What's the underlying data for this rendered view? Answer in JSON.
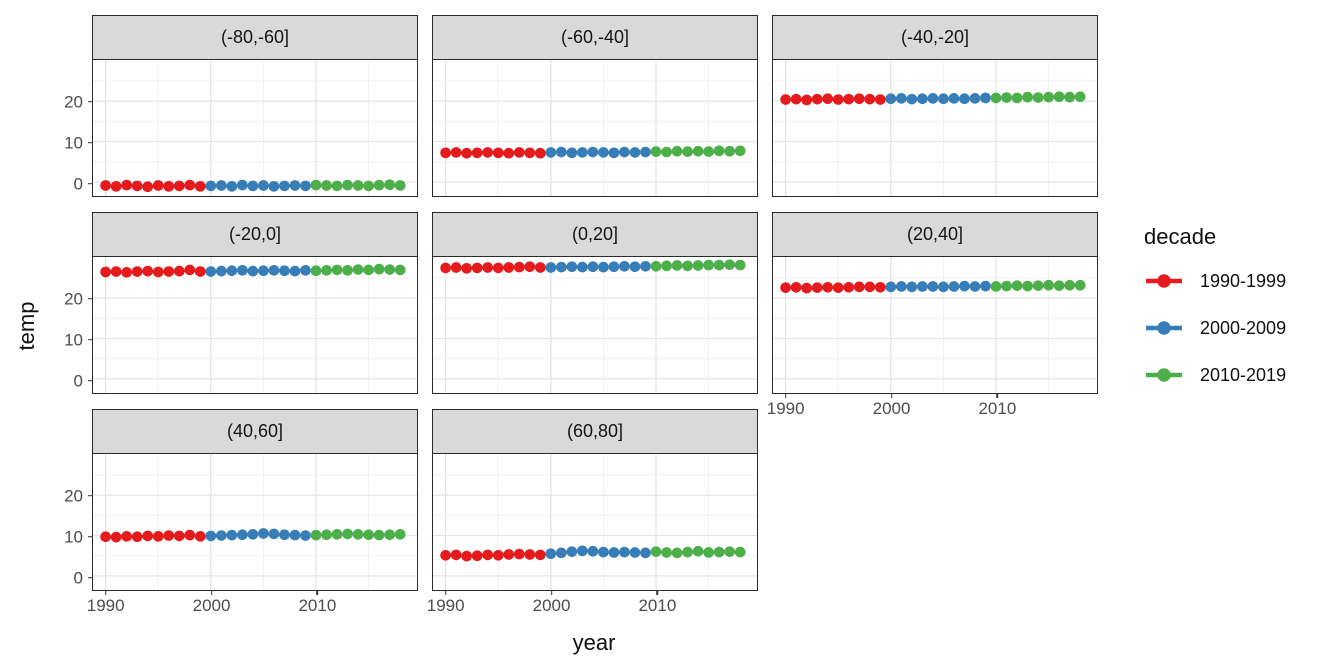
{
  "axes": {
    "x_title": "year",
    "y_title": "temp",
    "x_tick_labels": [
      "1990",
      "2000",
      "2010"
    ],
    "y_tick_labels": [
      "0",
      "10",
      "20"
    ]
  },
  "legend": {
    "title": "decade",
    "entries": [
      {
        "label": "1990-1999",
        "color": "#E41A1C"
      },
      {
        "label": "2000-2009",
        "color": "#377EB8"
      },
      {
        "label": "2010-2019",
        "color": "#4DAF4A"
      }
    ]
  },
  "colors": {
    "strip_fill": "#D9D9D9",
    "panel_border": "#2B2B2B",
    "grid_major": "#E4E4E4",
    "grid_minor": "#F1F1F1",
    "tick_text": "#4D4D4D"
  },
  "chart_data": {
    "type": "scatter",
    "title": "",
    "xlabel": "year",
    "ylabel": "temp",
    "legend_position": "right",
    "grid": true,
    "x_range": [
      1988.8,
      2019.6
    ],
    "y_range": [
      -3.5,
      30.2
    ],
    "x_major_ticks": [
      1990,
      2000,
      2010
    ],
    "x_minor_ticks": [
      1995,
      2005,
      2015
    ],
    "y_major_ticks": [
      0,
      10,
      20
    ],
    "y_minor_ticks": [
      5,
      15,
      25
    ],
    "years": [
      1990,
      1991,
      1992,
      1993,
      1994,
      1995,
      1996,
      1997,
      1998,
      1999,
      2000,
      2001,
      2002,
      2003,
      2004,
      2005,
      2006,
      2007,
      2008,
      2009,
      2010,
      2011,
      2012,
      2013,
      2014,
      2015,
      2016,
      2017,
      2018
    ],
    "decades": [
      {
        "name": "1990-1999",
        "color": "#E41A1C",
        "start": 1990,
        "end": 1999
      },
      {
        "name": "2000-2009",
        "color": "#377EB8",
        "start": 2000,
        "end": 2009
      },
      {
        "name": "2010-2019",
        "color": "#4DAF4A",
        "start": 2010,
        "end": 2019
      }
    ],
    "facets": [
      {
        "label": "(-80,-60]",
        "temps": [
          -0.9,
          -1.1,
          -0.8,
          -1.0,
          -1.2,
          -0.9,
          -1.1,
          -1.0,
          -0.8,
          -1.1,
          -1.0,
          -0.9,
          -1.1,
          -0.8,
          -1.0,
          -0.9,
          -1.1,
          -1.0,
          -0.9,
          -1.0,
          -0.8,
          -0.9,
          -1.0,
          -0.8,
          -0.9,
          -1.0,
          -0.8,
          -0.7,
          -0.9
        ]
      },
      {
        "label": "(-60,-40]",
        "temps": [
          7.2,
          7.3,
          7.1,
          7.2,
          7.3,
          7.2,
          7.1,
          7.3,
          7.2,
          7.1,
          7.3,
          7.4,
          7.2,
          7.3,
          7.4,
          7.3,
          7.2,
          7.4,
          7.3,
          7.4,
          7.5,
          7.4,
          7.6,
          7.5,
          7.6,
          7.5,
          7.7,
          7.6,
          7.7
        ]
      },
      {
        "label": "(-40,-20]",
        "temps": [
          20.4,
          20.5,
          20.3,
          20.5,
          20.6,
          20.4,
          20.5,
          20.6,
          20.5,
          20.4,
          20.6,
          20.7,
          20.5,
          20.6,
          20.7,
          20.6,
          20.7,
          20.6,
          20.7,
          20.8,
          20.8,
          20.9,
          20.8,
          21.0,
          20.9,
          21.0,
          21.1,
          21.0,
          21.1
        ]
      },
      {
        "label": "(-20,0]",
        "temps": [
          26.5,
          26.6,
          26.4,
          26.6,
          26.7,
          26.5,
          26.6,
          26.7,
          27.0,
          26.6,
          26.6,
          26.7,
          26.8,
          26.9,
          26.7,
          26.8,
          26.9,
          26.8,
          26.7,
          26.9,
          26.8,
          26.9,
          27.0,
          26.9,
          27.1,
          27.0,
          27.2,
          27.1,
          27.0
        ]
      },
      {
        "label": "(0,20]",
        "temps": [
          27.5,
          27.6,
          27.4,
          27.5,
          27.6,
          27.5,
          27.6,
          27.7,
          27.8,
          27.6,
          27.6,
          27.7,
          27.8,
          27.7,
          27.8,
          27.7,
          27.8,
          27.9,
          27.8,
          27.9,
          27.9,
          28.0,
          28.1,
          28.0,
          28.1,
          28.2,
          28.2,
          28.3,
          28.2
        ]
      },
      {
        "label": "(20,40]",
        "temps": [
          22.6,
          22.7,
          22.5,
          22.6,
          22.7,
          22.6,
          22.7,
          22.8,
          22.8,
          22.7,
          22.8,
          22.9,
          22.8,
          22.9,
          22.9,
          22.8,
          22.9,
          23.0,
          22.9,
          23.0,
          22.9,
          23.0,
          23.1,
          23.0,
          23.1,
          23.2,
          23.1,
          23.2,
          23.2
        ]
      },
      {
        "label": "(40,60]",
        "temps": [
          9.7,
          9.6,
          9.8,
          9.7,
          9.9,
          9.8,
          10.0,
          9.9,
          10.1,
          9.8,
          9.9,
          10.0,
          10.1,
          10.2,
          10.3,
          10.5,
          10.4,
          10.2,
          10.1,
          10.0,
          10.1,
          10.2,
          10.3,
          10.4,
          10.3,
          10.2,
          10.1,
          10.2,
          10.3
        ]
      },
      {
        "label": "(60,80]",
        "temps": [
          5.1,
          5.2,
          4.9,
          5.0,
          5.2,
          5.1,
          5.3,
          5.4,
          5.3,
          5.2,
          5.5,
          5.7,
          6.0,
          6.2,
          6.1,
          5.9,
          5.8,
          5.9,
          5.8,
          5.7,
          6.0,
          5.8,
          5.7,
          5.9,
          6.1,
          5.8,
          5.9,
          6.0,
          5.9
        ]
      }
    ]
  }
}
